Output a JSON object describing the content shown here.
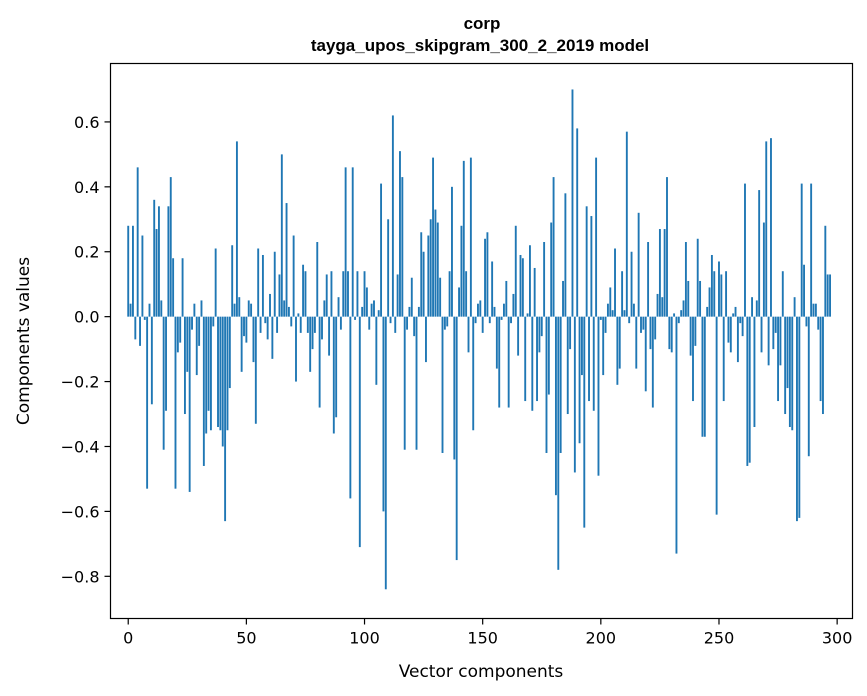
{
  "chart_data": {
    "type": "bar",
    "title": "corp",
    "subtitle": "tayga_upos_skipgram_300_2_2019 model",
    "xlabel": "Vector components",
    "ylabel": "Components values",
    "xlim": [
      -7.5,
      306.5
    ],
    "ylim": [
      -0.93,
      0.78
    ],
    "xticks": [
      0,
      50,
      100,
      150,
      200,
      250,
      300
    ],
    "xtick_labels": [
      "0",
      "50",
      "100",
      "150",
      "200",
      "250",
      "300"
    ],
    "yticks": [
      -0.8,
      -0.6,
      -0.4,
      -0.2,
      0.0,
      0.2,
      0.4,
      0.6
    ],
    "ytick_labels": [
      "−0.8",
      "−0.6",
      "−0.4",
      "−0.2",
      "0.0",
      "0.2",
      "0.4",
      "0.6"
    ],
    "bar_color": "#1f77b4",
    "series": [
      {
        "name": "corp",
        "x_start": 0,
        "values": [
          0.28,
          0.04,
          0.28,
          -0.07,
          0.46,
          -0.09,
          0.25,
          -0.01,
          -0.53,
          0.04,
          -0.27,
          0.36,
          0.27,
          0.34,
          0.05,
          -0.41,
          -0.29,
          0.34,
          0.43,
          0.18,
          -0.53,
          -0.11,
          -0.08,
          0.18,
          -0.3,
          -0.17,
          -0.54,
          -0.04,
          0.04,
          -0.18,
          -0.09,
          0.05,
          -0.46,
          -0.36,
          -0.29,
          -0.35,
          -0.03,
          0.21,
          -0.34,
          -0.35,
          -0.4,
          -0.63,
          -0.35,
          -0.22,
          0.22,
          0.04,
          0.54,
          0.06,
          -0.17,
          -0.06,
          -0.08,
          0.05,
          0.04,
          -0.14,
          -0.33,
          0.21,
          -0.05,
          0.19,
          -0.02,
          -0.07,
          0.07,
          -0.13,
          0.2,
          -0.05,
          0.13,
          0.5,
          0.05,
          0.35,
          0.03,
          -0.03,
          0.25,
          -0.2,
          0.01,
          -0.05,
          0.16,
          0.14,
          -0.05,
          -0.17,
          -0.1,
          -0.05,
          0.23,
          -0.28,
          -0.07,
          0.05,
          0.13,
          -0.12,
          0.14,
          -0.36,
          -0.31,
          0.06,
          -0.04,
          0.14,
          0.46,
          0.14,
          -0.56,
          0.46,
          -0.01,
          0.14,
          -0.71,
          0.03,
          0.14,
          0.09,
          -0.04,
          0.04,
          0.05,
          -0.21,
          0.02,
          0.41,
          -0.6,
          -0.84,
          0.3,
          -0.02,
          0.62,
          -0.05,
          0.13,
          0.51,
          0.43,
          -0.41,
          -0.04,
          0.03,
          0.12,
          -0.06,
          -0.41,
          0.03,
          0.26,
          0.2,
          -0.14,
          0.25,
          0.3,
          0.49,
          0.33,
          0.29,
          0.12,
          -0.42,
          -0.04,
          -0.03,
          0.14,
          0.4,
          -0.44,
          -0.75,
          0.09,
          0.28,
          0.48,
          0.14,
          -0.11,
          0.49,
          -0.35,
          -0.02,
          0.04,
          0.05,
          -0.05,
          0.24,
          0.26,
          -0.02,
          0.17,
          0.03,
          -0.16,
          -0.28,
          -0.01,
          0.04,
          0.11,
          -0.28,
          -0.02,
          0.07,
          0.28,
          -0.12,
          0.19,
          0.18,
          -0.26,
          0.01,
          0.22,
          -0.29,
          0.15,
          -0.26,
          -0.11,
          -0.06,
          0.23,
          -0.42,
          -0.24,
          0.29,
          0.43,
          -0.55,
          -0.78,
          -0.42,
          0.11,
          0.38,
          -0.3,
          -0.1,
          0.7,
          -0.48,
          0.58,
          -0.39,
          -0.18,
          -0.65,
          0.34,
          -0.26,
          0.31,
          -0.29,
          0.49,
          -0.49,
          -0.01,
          -0.18,
          -0.05,
          0.04,
          0.09,
          0.02,
          0.21,
          -0.21,
          -0.16,
          0.14,
          0.02,
          0.57,
          -0.02,
          0.2,
          0.04,
          -0.16,
          0.32,
          -0.05,
          -0.04,
          -0.23,
          0.23,
          -0.1,
          -0.28,
          -0.07,
          0.07,
          0.27,
          0.06,
          0.27,
          0.43,
          -0.1,
          -0.11,
          0.01,
          -0.73,
          -0.02,
          0.02,
          0.05,
          0.23,
          0.11,
          -0.12,
          -0.26,
          -0.09,
          0.24,
          0.11,
          -0.37,
          -0.37,
          0.03,
          0.09,
          0.19,
          0.14,
          -0.61,
          0.17,
          0.13,
          -0.26,
          0.14,
          -0.08,
          -0.11,
          0.01,
          0.03,
          -0.14,
          -0.02,
          -0.06,
          0.41,
          -0.46,
          -0.45,
          0.06,
          -0.34,
          0.05,
          0.39,
          -0.11,
          0.29,
          0.54,
          -0.15,
          0.55,
          -0.1,
          -0.05,
          -0.26,
          -0.15,
          0.14,
          -0.3,
          -0.22,
          -0.34,
          -0.35,
          0.06,
          -0.63,
          -0.62,
          0.41,
          0.16,
          -0.03,
          -0.43,
          0.41,
          0.04,
          0.04,
          -0.04,
          -0.26,
          -0.3,
          0.28,
          0.13,
          0.13
        ]
      }
    ]
  }
}
